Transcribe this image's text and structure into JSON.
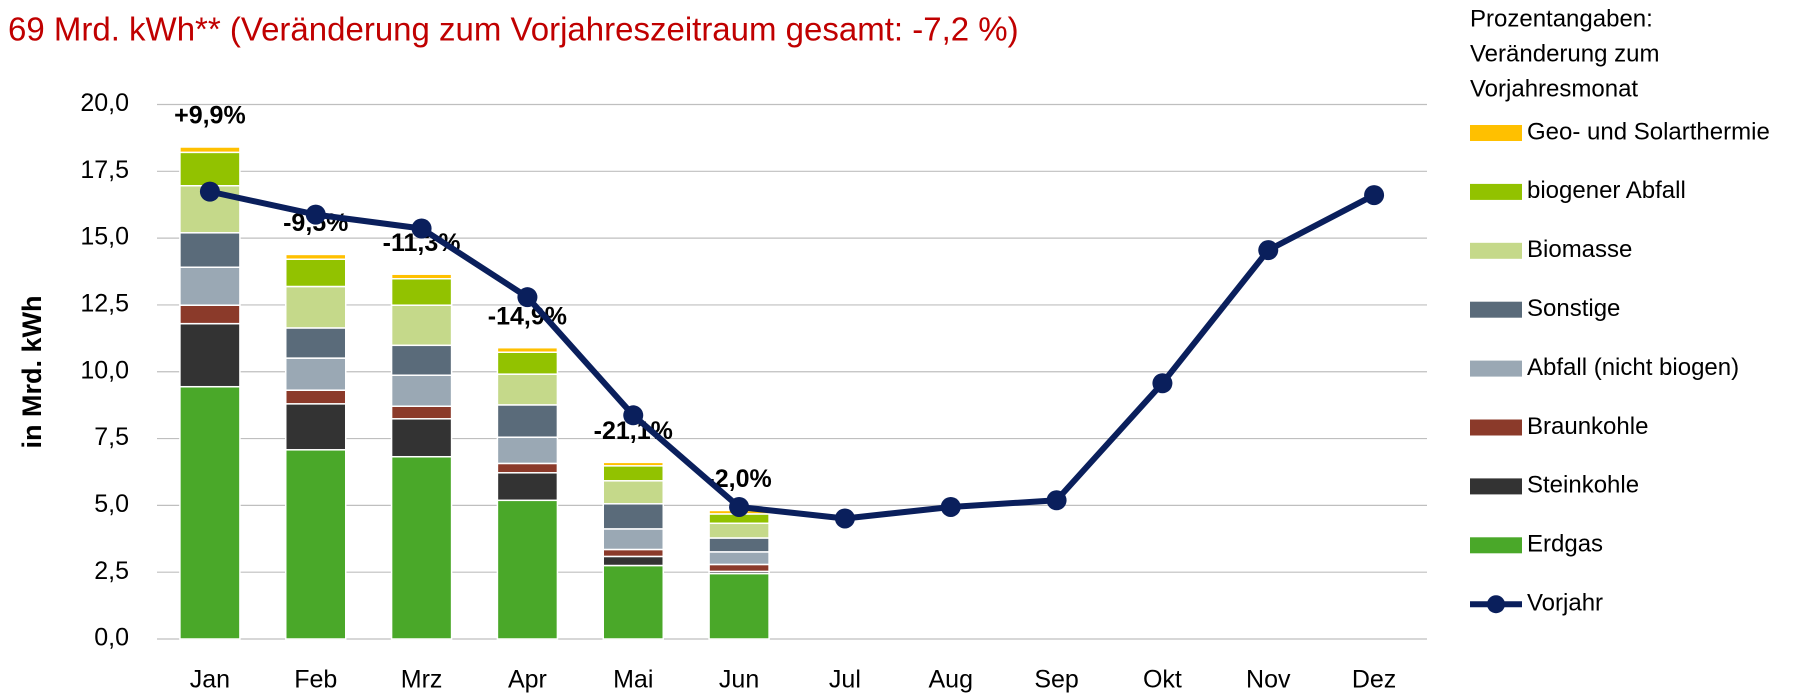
{
  "chart_data": {
    "type": "stacked-bar-line",
    "title": "69 Mrd. kWh** (Veränderung zum Vorjahreszeitraum gesamt: -7,2 %)",
    "y_label": "in Mrd. kWh",
    "legend_note": [
      "Prozentangaben:",
      "Veränderung zum",
      "Vorjahresmonat"
    ],
    "categories": [
      "Jan",
      "Feb",
      "Mrz",
      "Apr",
      "Mai",
      "Jun",
      "Jul",
      "Aug",
      "Sep",
      "Okt",
      "Nov",
      "Dez"
    ],
    "change_labels": [
      "+9,9%",
      "-9,5%",
      "-11,3%",
      "-14,9%",
      "-21,1%",
      "-2,0%",
      null,
      null,
      null,
      null,
      null,
      null
    ],
    "series": [
      {
        "name": "Erdgas",
        "color": "#4aa829",
        "values": [
          9.44,
          7.08,
          6.82,
          5.19,
          2.75,
          2.45,
          null,
          null,
          null,
          null,
          null,
          null
        ]
      },
      {
        "name": "Steinkohle",
        "color": "#333333",
        "values": [
          2.36,
          1.72,
          1.42,
          1.03,
          0.34,
          0.08,
          null,
          null,
          null,
          null,
          null,
          null
        ]
      },
      {
        "name": "Braunkohle",
        "color": "#8b3a2a",
        "values": [
          0.69,
          0.51,
          0.47,
          0.35,
          0.26,
          0.26,
          null,
          null,
          null,
          null,
          null,
          null
        ]
      },
      {
        "name": "Abfall (nicht biogen)",
        "color": "#9aa8b4",
        "values": [
          1.42,
          1.2,
          1.16,
          0.98,
          0.77,
          0.47,
          null,
          null,
          null,
          null,
          null,
          null
        ]
      },
      {
        "name": "Sonstige",
        "color": "#5a6b7a",
        "values": [
          1.29,
          1.13,
          1.12,
          1.21,
          0.94,
          0.52,
          null,
          null,
          null,
          null,
          null,
          null
        ]
      },
      {
        "name": "Biomasse",
        "color": "#c5d98a",
        "values": [
          1.76,
          1.55,
          1.5,
          1.15,
          0.86,
          0.55,
          null,
          null,
          null,
          null,
          null,
          null
        ]
      },
      {
        "name": "biogener Abfall",
        "color": "#92c200",
        "values": [
          1.25,
          1.02,
          0.99,
          0.82,
          0.56,
          0.35,
          null,
          null,
          null,
          null,
          null,
          null
        ]
      },
      {
        "name": "Geo- und Solarthermie",
        "color": "#ffc000",
        "values": [
          0.2,
          0.18,
          0.17,
          0.17,
          0.13,
          0.13,
          null,
          null,
          null,
          null,
          null,
          null
        ]
      }
    ],
    "line": {
      "name": "Vorjahr",
      "color": "#0a1f5c",
      "values": [
        16.74,
        15.88,
        15.36,
        12.79,
        8.37,
        4.94,
        4.51,
        4.94,
        5.19,
        9.57,
        14.55,
        16.61
      ]
    },
    "ylim": [
      0,
      20
    ],
    "yticks": [
      {
        "value": 0,
        "label": "0,0"
      },
      {
        "value": 2.5,
        "label": "2,5"
      },
      {
        "value": 5,
        "label": "5,0"
      },
      {
        "value": 7.5,
        "label": "7,5"
      },
      {
        "value": 10,
        "label": "10,0"
      },
      {
        "value": 12.5,
        "label": "12,5"
      },
      {
        "value": 15,
        "label": "15,0"
      },
      {
        "value": 17.5,
        "label": "17,5"
      },
      {
        "value": 20,
        "label": "20,0"
      }
    ],
    "grid": true
  }
}
